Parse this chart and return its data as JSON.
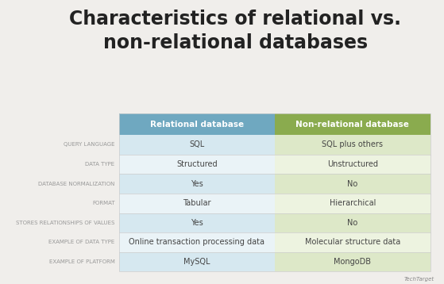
{
  "title": "Characteristics of relational vs.\nnon-relational databases",
  "title_fontsize": 17,
  "background_color": "#f0eeeb",
  "col_headers": [
    "Relational database",
    "Non-relational database"
  ],
  "col_header_colors": [
    "#6fa8c0",
    "#8aab4e"
  ],
  "col_header_text_color": "#ffffff",
  "row_labels": [
    "QUERY LANGUAGE",
    "DATA TYPE",
    "DATABASE NORMALIZATION",
    "FORMAT",
    "STORES RELATIONSHIPS OF VALUES",
    "EXAMPLE OF DATA TYPE",
    "EXAMPLE OF PLATFORM"
  ],
  "relational_values": [
    "SQL",
    "Structured",
    "Yes",
    "Tabular",
    "Yes",
    "Online transaction processing data",
    "MySQL"
  ],
  "nonrelational_values": [
    "SQL plus others",
    "Unstructured",
    "No",
    "Hierarchical",
    "No",
    "Molecular structure data",
    "MongoDB"
  ],
  "row_colors_relational": [
    "#d6e8f0",
    "#eaf3f7",
    "#d6e8f0",
    "#eaf3f7",
    "#d6e8f0",
    "#eaf3f7",
    "#d6e8f0"
  ],
  "row_colors_nonrelational": [
    "#dde8c8",
    "#edf3e0",
    "#dde8c8",
    "#edf3e0",
    "#dde8c8",
    "#edf3e0",
    "#dde8c8"
  ],
  "label_color": "#999999",
  "value_color": "#444444",
  "label_fontsize": 5.0,
  "value_fontsize": 7.0,
  "header_fontsize": 7.5
}
